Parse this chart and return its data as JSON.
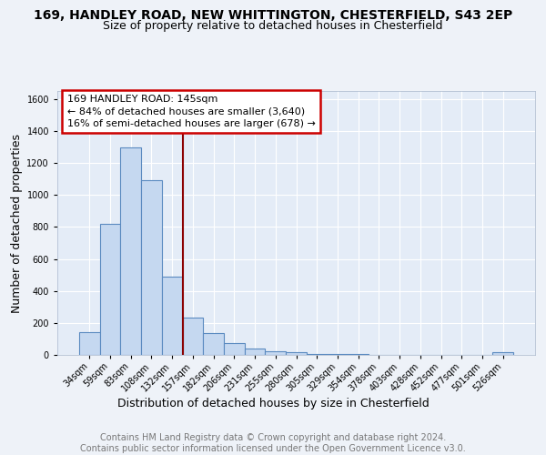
{
  "title_line1": "169, HANDLEY ROAD, NEW WHITTINGTON, CHESTERFIELD, S43 2EP",
  "title_line2": "Size of property relative to detached houses in Chesterfield",
  "xlabel": "Distribution of detached houses by size in Chesterfield",
  "ylabel": "Number of detached properties",
  "footer_line1": "Contains HM Land Registry data © Crown copyright and database right 2024.",
  "footer_line2": "Contains public sector information licensed under the Open Government Licence v3.0.",
  "categories": [
    "34sqm",
    "59sqm",
    "83sqm",
    "108sqm",
    "132sqm",
    "157sqm",
    "182sqm",
    "206sqm",
    "231sqm",
    "255sqm",
    "280sqm",
    "305sqm",
    "329sqm",
    "354sqm",
    "378sqm",
    "403sqm",
    "428sqm",
    "452sqm",
    "477sqm",
    "501sqm",
    "526sqm"
  ],
  "values": [
    140,
    820,
    1300,
    1090,
    490,
    235,
    135,
    75,
    40,
    25,
    15,
    8,
    5,
    3,
    2,
    2,
    1,
    1,
    1,
    1,
    15
  ],
  "bar_color": "#c5d8f0",
  "bar_edge_color": "#5a8ac0",
  "ref_line_x": 4.5,
  "ref_line_color": "#8b0000",
  "annotation_text_line1": "169 HANDLEY ROAD: 145sqm",
  "annotation_text_line2": "← 84% of detached houses are smaller (3,640)",
  "annotation_text_line3": "16% of semi-detached houses are larger (678) →",
  "annotation_box_color": "#ffffff",
  "annotation_border_color": "#cc0000",
  "ylim": [
    0,
    1650
  ],
  "yticks": [
    0,
    200,
    400,
    600,
    800,
    1000,
    1200,
    1400,
    1600
  ],
  "background_color": "#eef2f8",
  "plot_background": "#e4ecf7",
  "grid_color": "#ffffff",
  "title_fontsize": 10,
  "subtitle_fontsize": 9,
  "axis_label_fontsize": 9,
  "tick_fontsize": 7,
  "annotation_fontsize": 8,
  "footer_fontsize": 7
}
